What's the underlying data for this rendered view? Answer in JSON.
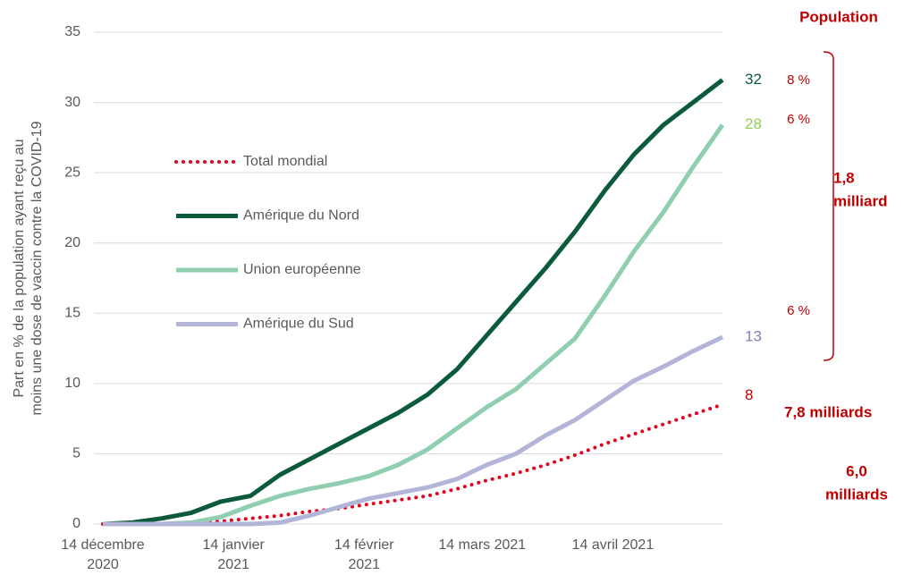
{
  "chart_data": {
    "type": "line",
    "ylabel": [
      "Part en % de la population ayant reçu au",
      "moins une dose de vaccin contre la COVID-19"
    ],
    "x": [
      0,
      7,
      14,
      21,
      28,
      35,
      42,
      49,
      56,
      63,
      70,
      77,
      84,
      91,
      98,
      105,
      112,
      119,
      126,
      133,
      140,
      147
    ],
    "xlim": [
      0,
      147
    ],
    "xticks": [
      {
        "value": 0,
        "label": "14 décembre 2020"
      },
      {
        "value": 31,
        "label": "14 janvier 2021"
      },
      {
        "value": 62,
        "label": "14 février 2021"
      },
      {
        "value": 90,
        "label": "14 mars 2021"
      },
      {
        "value": 121,
        "label": "14 avril 2021"
      }
    ],
    "ylim": [
      0,
      35
    ],
    "yticks": [
      0,
      5,
      10,
      15,
      20,
      25,
      30,
      35
    ],
    "grid": true,
    "series": [
      {
        "name": "Total mondial",
        "color": "#e3001b",
        "dash": "dotted",
        "end_label": "8",
        "label_color": "#c00000",
        "values": [
          0,
          0,
          0,
          0.1,
          0.2,
          0.4,
          0.6,
          0.9,
          1.1,
          1.4,
          1.7,
          2.0,
          2.5,
          3.1,
          3.6,
          4.2,
          4.9,
          5.7,
          6.4,
          7.1,
          7.8,
          8.5
        ]
      },
      {
        "name": "Amérique du Nord",
        "color": "#0b5a3a",
        "end_label": "32",
        "label_color": "#0b5a3a",
        "values": [
          0,
          0.1,
          0.4,
          0.8,
          1.6,
          2.0,
          3.5,
          4.6,
          5.7,
          6.8,
          7.9,
          9.2,
          11.0,
          13.4,
          15.8,
          18.2,
          20.8,
          23.7,
          26.3,
          28.4,
          30.0,
          31.6
        ]
      },
      {
        "name": "Union européenne",
        "color": "#8fcfb0",
        "end_label": "28",
        "label_color": "#92d050",
        "values": [
          0,
          0,
          0,
          0.1,
          0.5,
          1.3,
          2.0,
          2.5,
          2.9,
          3.4,
          4.2,
          5.3,
          6.8,
          8.3,
          9.6,
          11.4,
          13.2,
          16.2,
          19.4,
          22.2,
          25.4,
          28.4
        ]
      },
      {
        "name": "Amérique du Sud",
        "color": "#b3b5d8",
        "end_label": "13",
        "label_color": "#8080b8",
        "values": [
          0,
          0,
          0,
          0,
          0,
          0,
          0.1,
          0.6,
          1.2,
          1.8,
          2.2,
          2.6,
          3.2,
          4.2,
          5.0,
          6.3,
          7.4,
          8.8,
          10.2,
          11.2,
          12.3,
          13.3
        ]
      }
    ],
    "annotations": [
      {
        "lines": [
          "Population"
        ],
        "bold": true
      },
      {
        "lines": [
          "8 %"
        ]
      },
      {
        "lines": [
          "6 %"
        ]
      },
      {
        "lines": [
          "6 %"
        ]
      },
      {
        "lines": [
          "1,8",
          "milliard"
        ],
        "bold": true
      },
      {
        "lines": [
          "7,8 milliards"
        ],
        "bold": true
      },
      {
        "lines": [
          "6,0",
          "milliards"
        ],
        "bold": true
      }
    ]
  }
}
